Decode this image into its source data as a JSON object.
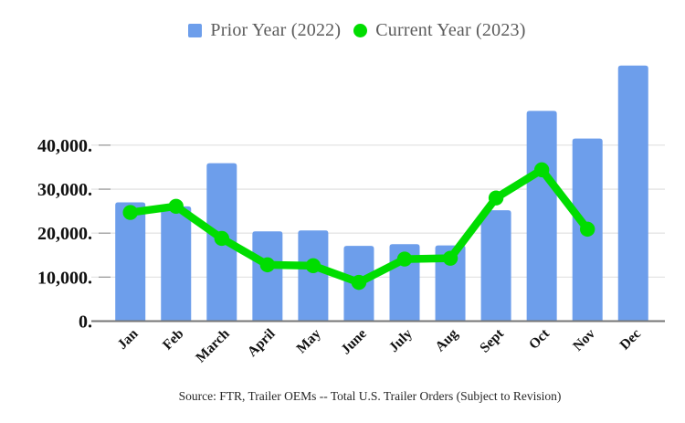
{
  "legend": {
    "items": [
      {
        "swatch": "square",
        "label_ref": "Prior Year (2022)"
      },
      {
        "swatch": "circle",
        "label_ref": "Current Year (2023)"
      }
    ]
  },
  "footer": {
    "source_text": "Source: FTR, Trailer OEMs -- Total U.S. Trailer Orders (Subject to Revision)"
  },
  "chart_data": {
    "type": "bar",
    "subtype": "bar-line-combo",
    "categories": [
      "Jan",
      "Feb",
      "March",
      "April",
      "May",
      "June",
      "July",
      "Aug",
      "Sept",
      "Oct",
      "Nov",
      "Dec"
    ],
    "series": [
      {
        "name": "Prior Year (2022)",
        "render": "bar",
        "color": "#6d9eeb",
        "values": [
          27000,
          26100,
          35900,
          20400,
          20600,
          17100,
          17500,
          17200,
          25200,
          47800,
          41500,
          58100
        ]
      },
      {
        "name": "Current Year (2023)",
        "render": "line",
        "color": "#00dd00",
        "values": [
          24700,
          26100,
          18800,
          12800,
          12600,
          8800,
          14100,
          14300,
          28000,
          34400,
          20900,
          null
        ]
      }
    ],
    "y_axis": {
      "tick_values": [
        0,
        10000,
        20000,
        30000,
        40000
      ],
      "tick_labels": [
        "0.",
        "10,000.",
        "20,000.",
        "30,000.",
        "40,000."
      ],
      "ylim": [
        0,
        60000
      ],
      "grid": true
    },
    "x_axis": {
      "label_rotation_deg": -45
    },
    "legend_position": "top",
    "colors": {
      "bar": "#6d9eeb",
      "line": "#00dd00",
      "grid": "#e4e4e4",
      "axis_line": "#757575",
      "tick_dash": "#9e9e9e",
      "axis_text": "#111111",
      "legend_text": "#5b5b5b",
      "footer_text": "#262626",
      "background": "#ffffff"
    }
  }
}
